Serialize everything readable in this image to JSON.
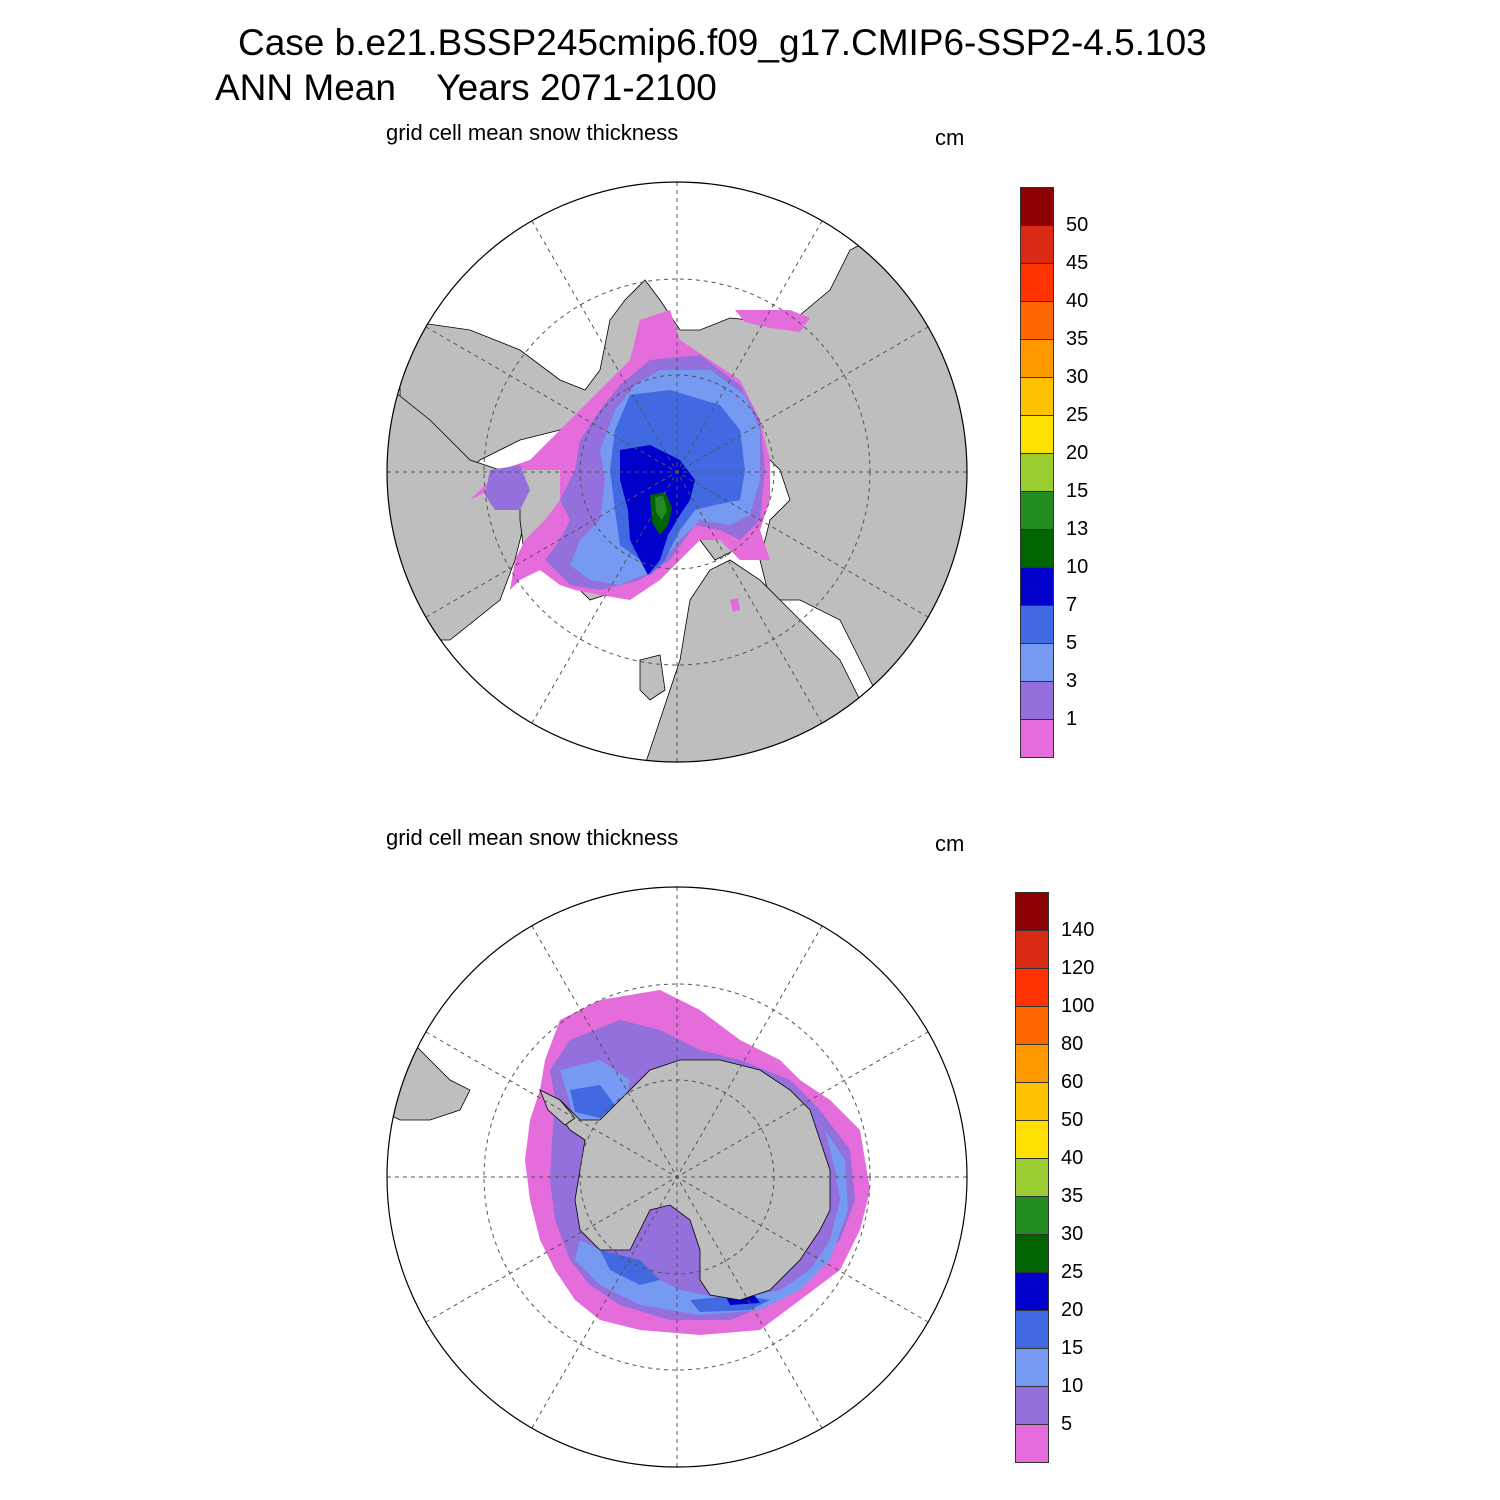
{
  "title_line1": "Case b.e21.BSSP245cmip6.f09_g17.CMIP6-SSP2-4.5.103",
  "title_line2": "ANN Mean    Years 2071-2100",
  "land_color": "#bebebe",
  "panels": [
    {
      "hemisphere": "north",
      "title": "grid cell mean snow thickness",
      "units": "cm",
      "colorbar": {
        "colors": [
          "#e46cdb",
          "#9370db",
          "#7699f1",
          "#4169e1",
          "#0000cd",
          "#006400",
          "#228b22",
          "#9acd32",
          "#ffe000",
          "#ffc000",
          "#ff9900",
          "#ff6600",
          "#ff3300",
          "#d92b14",
          "#8b0000"
        ],
        "labels": [
          "1",
          "3",
          "5",
          "7",
          "10",
          "13",
          "15",
          "20",
          "25",
          "30",
          "35",
          "40",
          "45",
          "50"
        ]
      }
    },
    {
      "hemisphere": "south",
      "title": "grid cell mean snow thickness",
      "units": "cm",
      "colorbar": {
        "colors": [
          "#e46cdb",
          "#9370db",
          "#7699f1",
          "#4169e1",
          "#0000cd",
          "#006400",
          "#228b22",
          "#9acd32",
          "#ffe000",
          "#ffc000",
          "#ff9900",
          "#ff6600",
          "#ff3300",
          "#d92b14",
          "#8b0000"
        ],
        "labels": [
          "5",
          "10",
          "15",
          "20",
          "25",
          "30",
          "35",
          "40",
          "50",
          "60",
          "80",
          "100",
          "120",
          "140"
        ]
      }
    }
  ]
}
